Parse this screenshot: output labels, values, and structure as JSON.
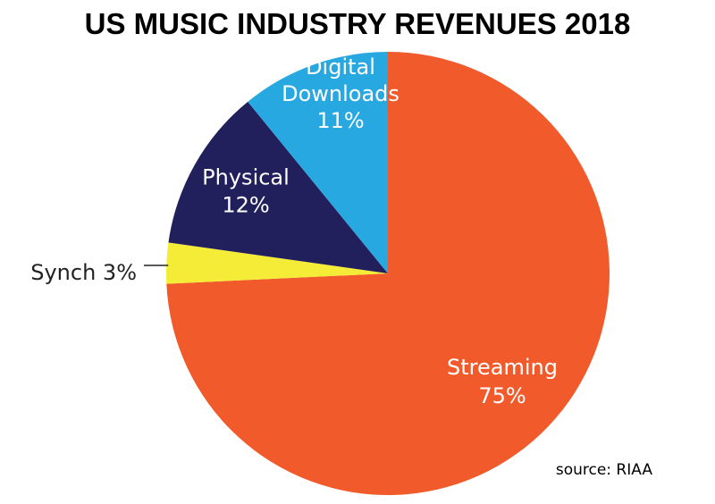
{
  "chart_data": {
    "type": "pie",
    "title": "US MUSIC INDUSTRY REVENUES 2018",
    "source": "source: RIAA",
    "slices": [
      {
        "name": "Streaming",
        "value": 75,
        "label_lines": [
          "Streaming",
          "75%"
        ],
        "color": "#f15a2b",
        "label_style": "inside"
      },
      {
        "name": "Synch",
        "value": 3,
        "label_lines": [
          "Synch 3%"
        ],
        "color": "#f4ec37",
        "label_style": "outside"
      },
      {
        "name": "Physical",
        "value": 12,
        "label_lines": [
          "Physical",
          "12%"
        ],
        "color": "#22205c",
        "label_style": "inside"
      },
      {
        "name": "Digital Downloads",
        "value": 11,
        "label_lines": [
          "Digital",
          "Downloads",
          "11%"
        ],
        "color": "#28a8e0",
        "label_style": "inside"
      }
    ],
    "start_angle": "12 o'clock",
    "direction": "clockwise"
  }
}
